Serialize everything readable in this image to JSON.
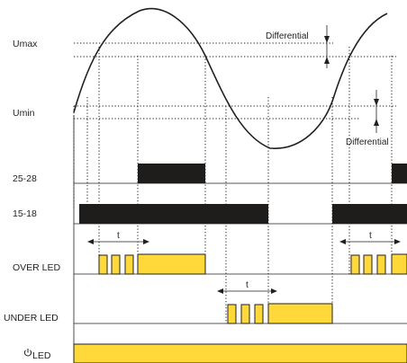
{
  "labels": {
    "umax": "Umax",
    "umin": "Umin",
    "r1": "25-28",
    "r2": "15-18",
    "over": "OVER LED",
    "under": "UNDER LED",
    "power": "LED",
    "power_symbol": "power-symbol-icon",
    "differential_top": "Differential",
    "differential_bottom": "Differential",
    "t1": "t",
    "t2": "t",
    "t3": "t"
  },
  "colors": {
    "led_fill": "#ffd93a",
    "relay_fill": "#1f1c1c",
    "line": "#231f20"
  }
}
